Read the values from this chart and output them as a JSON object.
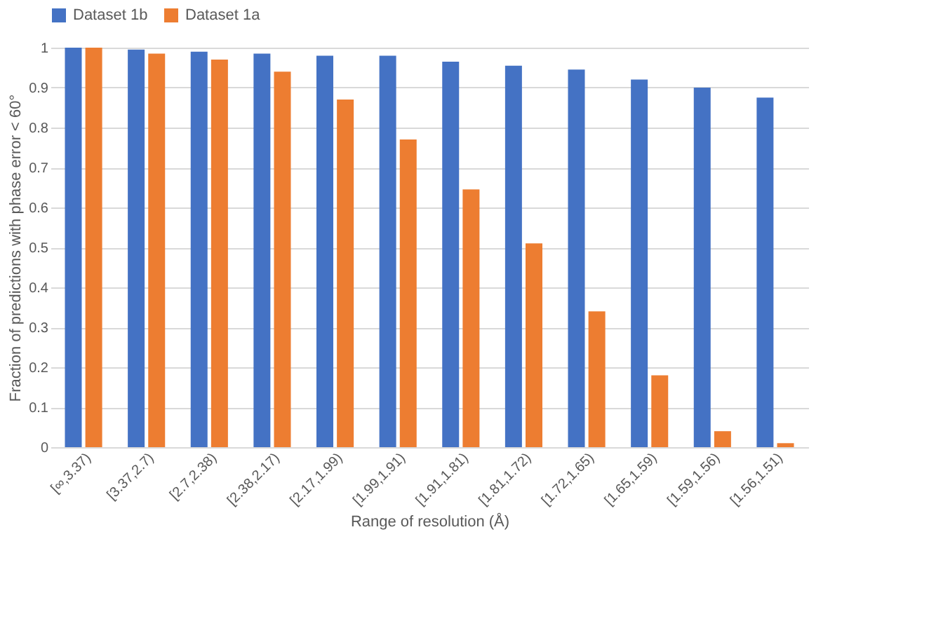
{
  "chart_data": {
    "type": "bar",
    "xlabel": "Range of resolution (Å)",
    "ylabel": "Fraction of predictions with phase error < 60°",
    "categories": [
      "[∞,3.37)",
      "[3.37,2.7)",
      "[2.7,2.38)",
      "[2.38,2.17)",
      "[2.17,1.99)",
      "[1.99,1.91)",
      "[1.91,1.81)",
      "[1.81,1.72)",
      "[1.72,1.65)",
      "[1.65,1.59)",
      "[1.59,1.56)",
      "[1.56,1.51)"
    ],
    "series": [
      {
        "name": "Dataset 1b",
        "color": "#4472c4",
        "values": [
          1,
          0.995,
          0.99,
          0.985,
          0.98,
          0.98,
          0.965,
          0.955,
          0.945,
          0.92,
          0.9,
          0.875
        ]
      },
      {
        "name": "Dataset 1a",
        "color": "#ed7d31",
        "values": [
          1,
          0.985,
          0.97,
          0.94,
          0.87,
          0.77,
          0.645,
          0.51,
          0.34,
          0.18,
          0.04,
          0.01
        ]
      }
    ],
    "ylim": [
      0,
      1
    ],
    "yticks": [
      0,
      0.1,
      0.2,
      0.3,
      0.4,
      0.5,
      0.6,
      0.7,
      0.8,
      0.9,
      1
    ],
    "grid": "y",
    "legend": "top"
  }
}
